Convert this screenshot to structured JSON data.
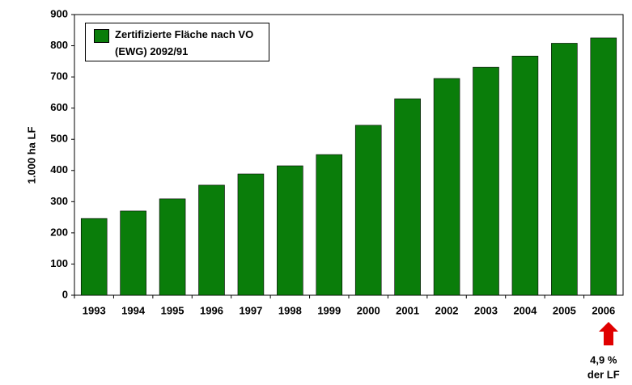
{
  "chart_data": {
    "type": "bar",
    "ylabel": "1.000 ha LF",
    "categories": [
      "1993",
      "1994",
      "1995",
      "1996",
      "1997",
      "1998",
      "1999",
      "2000",
      "2001",
      "2002",
      "2003",
      "2004",
      "2005",
      "2006"
    ],
    "series": [
      {
        "name": "Zertifizierte Fläche nach VO (EWG) 2092/91",
        "color": "#0a7d0a",
        "values": [
          246,
          270,
          309,
          353,
          389,
          415,
          451,
          545,
          630,
          695,
          731,
          767,
          808,
          825
        ]
      }
    ],
    "ylim": [
      0,
      900
    ],
    "yticks": [
      0,
      100,
      200,
      300,
      400,
      500,
      600,
      700,
      800,
      900
    ],
    "grid": false,
    "legend": "upper left",
    "annotations": [
      "4,9 %",
      "der LF"
    ]
  }
}
